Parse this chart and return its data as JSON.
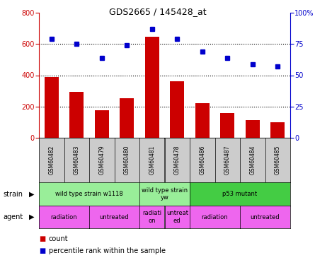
{
  "title": "GDS2665 / 145428_at",
  "samples": [
    "GSM60482",
    "GSM60483",
    "GSM60479",
    "GSM60480",
    "GSM60481",
    "GSM60478",
    "GSM60486",
    "GSM60487",
    "GSM60484",
    "GSM60485"
  ],
  "counts": [
    390,
    295,
    178,
    255,
    648,
    362,
    220,
    158,
    115,
    100
  ],
  "percentiles": [
    79,
    75,
    64,
    74,
    87,
    79,
    69,
    64,
    59,
    57
  ],
  "bar_color": "#cc0000",
  "dot_color": "#0000cc",
  "left_ylim": [
    0,
    800
  ],
  "right_ylim": [
    0,
    100
  ],
  "left_yticks": [
    0,
    200,
    400,
    600,
    800
  ],
  "right_yticks": [
    0,
    25,
    50,
    75,
    100
  ],
  "right_yticklabels": [
    "0",
    "25",
    "50",
    "75",
    "100%"
  ],
  "grid_values": [
    200,
    400,
    600
  ],
  "strain_groups": [
    {
      "label": "wild type strain w1118",
      "start": 0,
      "end": 4,
      "color": "#99ee99"
    },
    {
      "label": "wild type strain\nyw",
      "start": 4,
      "end": 6,
      "color": "#99ee99"
    },
    {
      "label": "p53 mutant",
      "start": 6,
      "end": 10,
      "color": "#44cc44"
    }
  ],
  "agent_groups": [
    {
      "label": "radiation",
      "start": 0,
      "end": 2,
      "color": "#ee66ee"
    },
    {
      "label": "untreated",
      "start": 2,
      "end": 4,
      "color": "#ee66ee"
    },
    {
      "label": "radiati\non",
      "start": 4,
      "end": 5,
      "color": "#ee66ee"
    },
    {
      "label": "untreat\ned",
      "start": 5,
      "end": 6,
      "color": "#ee66ee"
    },
    {
      "label": "radiation",
      "start": 6,
      "end": 8,
      "color": "#ee66ee"
    },
    {
      "label": "untreated",
      "start": 8,
      "end": 10,
      "color": "#ee66ee"
    }
  ],
  "legend_count_label": "count",
  "legend_pct_label": "percentile rank within the sample",
  "background_color": "#ffffff",
  "table_header_color": "#cccccc",
  "strain_label": "strain",
  "agent_label": "agent"
}
